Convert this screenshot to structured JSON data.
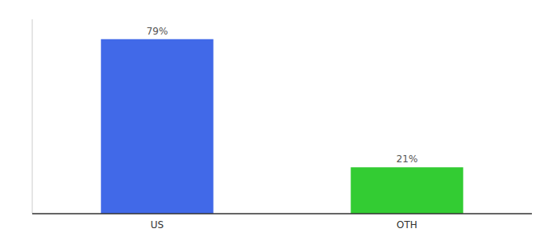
{
  "chart_data": {
    "type": "bar",
    "categories": [
      "US",
      "OTH"
    ],
    "values": [
      79,
      21
    ],
    "value_labels": [
      "79%",
      "21%"
    ],
    "colors": [
      "#4169e8",
      "#33cc33"
    ],
    "ylim": [
      0,
      88
    ],
    "yticks": [],
    "data_labels": true,
    "tick_labels": "x",
    "grid": false
  }
}
